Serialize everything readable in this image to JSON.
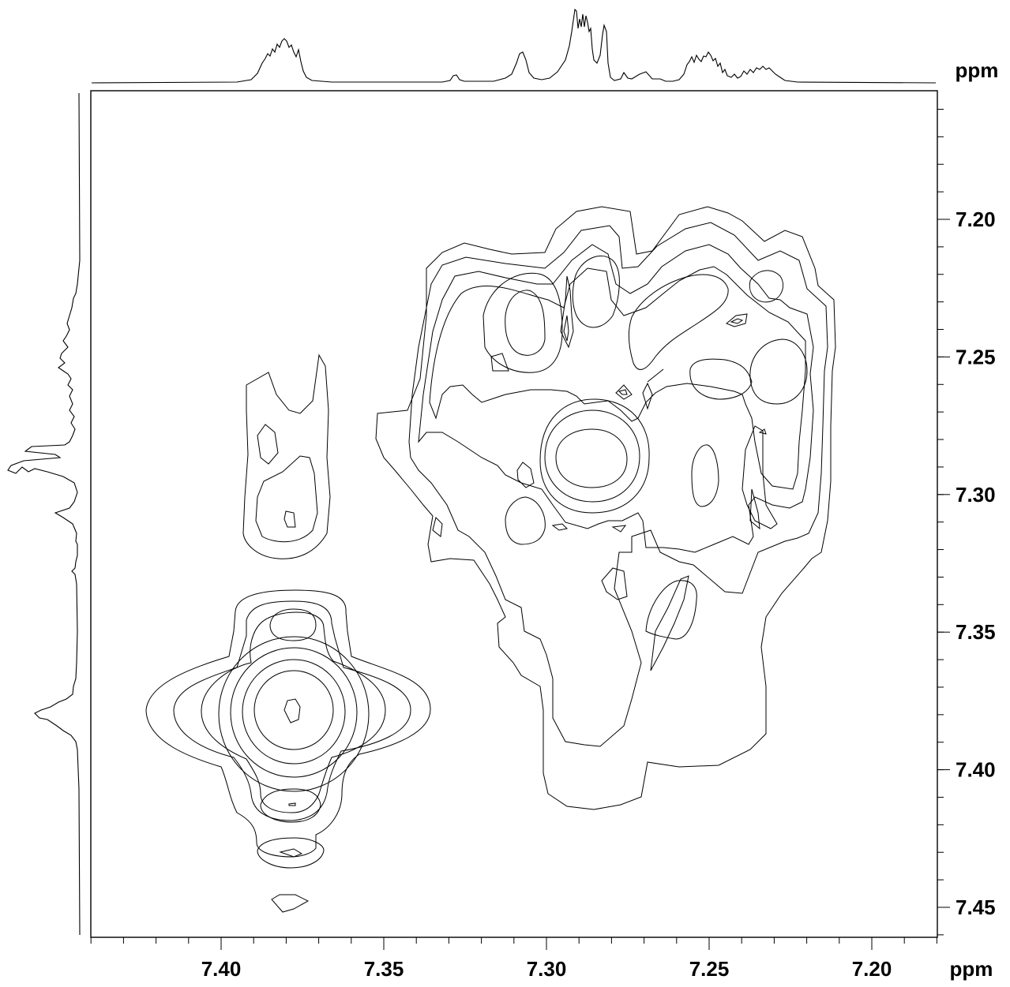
{
  "chart_data": {
    "type": "contour",
    "title": "",
    "xlabel": "ppm",
    "ylabel": "ppm",
    "x_direction": "decreasing",
    "y_direction": "increasing-downward",
    "xlim": [
      7.44,
      7.18
    ],
    "ylim": [
      7.16,
      7.46
    ],
    "x_ticks": [
      "7.40",
      "7.35",
      "7.30",
      "7.25",
      "7.20"
    ],
    "y_ticks": [
      "7.20",
      "7.25",
      "7.30",
      "7.35",
      "7.40",
      "7.45"
    ],
    "x_tick_values": [
      7.4,
      7.35,
      7.3,
      7.25,
      7.2
    ],
    "y_tick_values": [
      7.2,
      7.25,
      7.3,
      7.35,
      7.4,
      7.45
    ],
    "projection_peaks_ppm": [
      7.38,
      7.327,
      7.308,
      7.29,
      7.283,
      7.272,
      7.267,
      7.25,
      7.235
    ],
    "cross_peaks": [
      {
        "x": 7.378,
        "y": 7.38,
        "levels": 7
      },
      {
        "x": 7.378,
        "y": 7.348,
        "levels": 3
      },
      {
        "x": 7.378,
        "y": 7.413,
        "levels": 3
      },
      {
        "x": 7.378,
        "y": 7.433,
        "levels": 2
      },
      {
        "x": 7.378,
        "y": 7.448,
        "levels": 1
      },
      {
        "x": 7.378,
        "y": 7.29,
        "levels": 3
      },
      {
        "x": 7.29,
        "y": 7.29,
        "levels": 4
      },
      {
        "x": 7.305,
        "y": 7.24,
        "levels": 3
      },
      {
        "x": 7.255,
        "y": 7.258,
        "levels": 3
      },
      {
        "x": 7.237,
        "y": 7.258,
        "levels": 3
      },
      {
        "x": 7.25,
        "y": 7.29,
        "levels": 2
      },
      {
        "x": 7.25,
        "y": 7.34,
        "levels": 2
      }
    ],
    "grid": false,
    "legend": false,
    "colors": {
      "line": "#000000",
      "background": "#ffffff"
    }
  },
  "labels": {
    "x_unit": "ppm",
    "y_unit": "ppm"
  }
}
